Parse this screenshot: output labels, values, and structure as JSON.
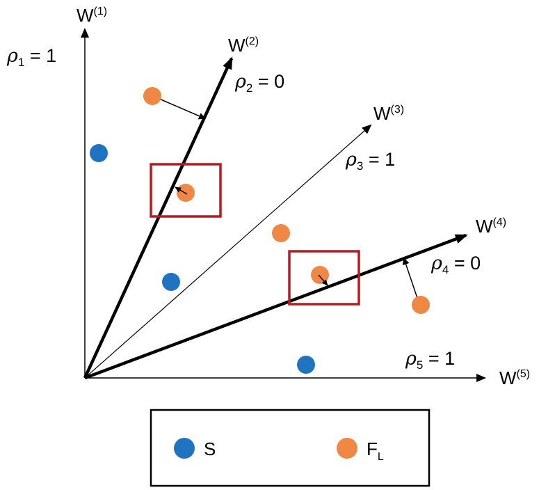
{
  "axes": [
    {
      "id": "w1",
      "name": "W",
      "sup": "(1)"
    },
    {
      "id": "w2",
      "name": "W",
      "sup": "(2)"
    },
    {
      "id": "w3",
      "name": "W",
      "sup": "(3)"
    },
    {
      "id": "w4",
      "name": "W",
      "sup": "(4)"
    },
    {
      "id": "w5",
      "name": "W",
      "sup": "(5)"
    }
  ],
  "rho_labels": [
    {
      "id": "rho1",
      "symbol": "ρ",
      "sub": "1",
      "rest": " = 1"
    },
    {
      "id": "rho2",
      "symbol": "ρ",
      "sub": "2",
      "rest": " = 0"
    },
    {
      "id": "rho3",
      "symbol": "ρ",
      "sub": "3",
      "rest": " = 1"
    },
    {
      "id": "rho4",
      "symbol": "ρ",
      "sub": "4",
      "rest": " = 0"
    },
    {
      "id": "rho5",
      "symbol": "ρ",
      "sub": "5",
      "rest": " = 1"
    }
  ],
  "legend": {
    "s_label": "S",
    "f_label": "F",
    "f_sub": "L"
  },
  "colors": {
    "s_point": "#1f73c1",
    "f_point": "#ee8844",
    "highlight_box": "#b01e23",
    "ink": "#000000"
  }
}
